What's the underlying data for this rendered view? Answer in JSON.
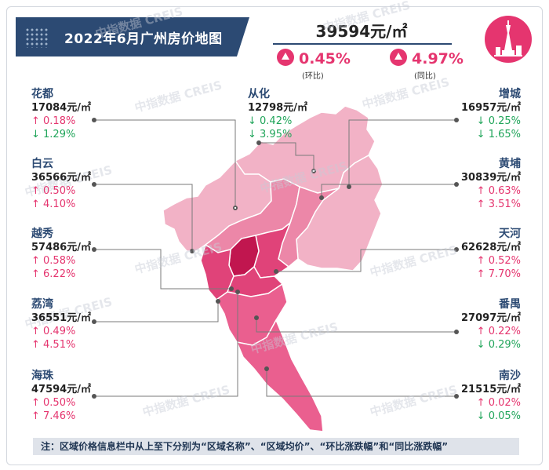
{
  "title": "2022年6月广州房价地图",
  "overall": {
    "price": "39594元/㎡",
    "mom": "0.45%",
    "mom_label": "(环比)",
    "yoy": "4.97%",
    "yoy_label": "(同比)"
  },
  "watermark": "中指数据 CREIS",
  "districts": [
    {
      "name": "花都",
      "price": "17084元/㎡",
      "mom": "↑ 0.18%",
      "yoy": "↓ 1.29%",
      "mom_dir": "up",
      "yoy_dir": "down"
    },
    {
      "name": "从化",
      "price": "12798元/㎡",
      "mom": "↓ 0.42%",
      "yoy": "↓ 3.95%",
      "mom_dir": "down",
      "yoy_dir": "down"
    },
    {
      "name": "增城",
      "price": "16957元/㎡",
      "mom": "↓ 0.25%",
      "yoy": "↓ 1.65%",
      "mom_dir": "down",
      "yoy_dir": "down"
    },
    {
      "name": "白云",
      "price": "36566元/㎡",
      "mom": "↑ 0.50%",
      "yoy": "↑ 4.10%",
      "mom_dir": "up",
      "yoy_dir": "up"
    },
    {
      "name": "黄埔",
      "price": "30839元/㎡",
      "mom": "↑ 0.63%",
      "yoy": "↑ 3.51%",
      "mom_dir": "up",
      "yoy_dir": "up"
    },
    {
      "name": "越秀",
      "price": "57486元/㎡",
      "mom": "↑ 0.58%",
      "yoy": "↑ 6.22%",
      "mom_dir": "up",
      "yoy_dir": "up"
    },
    {
      "name": "天河",
      "price": "62628元/㎡",
      "mom": "↑ 0.52%",
      "yoy": "↑ 7.70%",
      "mom_dir": "up",
      "yoy_dir": "up"
    },
    {
      "name": "荔湾",
      "price": "36551元/㎡",
      "mom": "↑ 0.49%",
      "yoy": "↑ 4.51%",
      "mom_dir": "up",
      "yoy_dir": "up"
    },
    {
      "name": "番禺",
      "price": "27097元/㎡",
      "mom": "↑ 0.22%",
      "yoy": "↓ 0.29%",
      "mom_dir": "up",
      "yoy_dir": "down"
    },
    {
      "name": "海珠",
      "price": "47594元/㎡",
      "mom": "↑ 0.50%",
      "yoy": "↑ 7.46%",
      "mom_dir": "up",
      "yoy_dir": "up"
    },
    {
      "name": "南沙",
      "price": "21515元/㎡",
      "mom": "↑ 0.02%",
      "yoy": "↓ 0.05%",
      "mom_dir": "up",
      "yoy_dir": "down"
    }
  ],
  "footnote": "注：区域价格信息栏中从上至下分别为“区域名称”、“区域均价”、“环比涨跌幅”和“同比涨跌幅”",
  "colors": {
    "title_bg": "#2c4a73",
    "accent_pink": "#e5356f",
    "up": "#e5356f",
    "down": "#20a55a",
    "map_light": "#f1a9c0",
    "map_mid": "#ee7aa0",
    "map_dark": "#e23a72",
    "map_darkest": "#b5154d"
  }
}
